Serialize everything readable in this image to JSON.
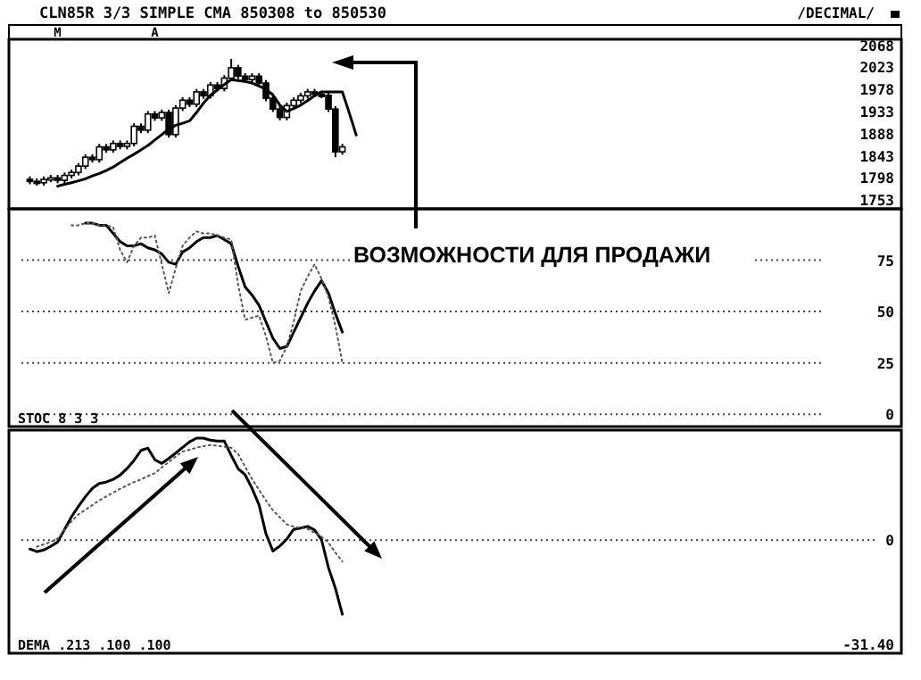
{
  "chart_data": [
    {
      "type": "candlestick",
      "title": "CLN85R 3/3 SIMPLE CMA  850308 to 850530",
      "annotations": [
        "/DECIMAL/"
      ],
      "categories": [
        null,
        null,
        null,
        null,
        null,
        null,
        "M",
        null,
        null,
        null,
        null,
        null,
        null,
        null,
        null,
        null,
        null,
        null,
        null,
        null,
        "A",
        null,
        null,
        null,
        null,
        null,
        null,
        null,
        null,
        null,
        null,
        null,
        null,
        null,
        null,
        null,
        null,
        null,
        null,
        null,
        null,
        null,
        null,
        null,
        null,
        null,
        null,
        null,
        null,
        null,
        null,
        null,
        null,
        null,
        null,
        null,
        null,
        null,
        null,
        null,
        null,
        null,
        null,
        null,
        null,
        null,
        null,
        null,
        null,
        null,
        null,
        null,
        null,
        null,
        null,
        null,
        null,
        null,
        null,
        null,
        null,
        null,
        null,
        null,
        null,
        null,
        null,
        null,
        null,
        null,
        null,
        null,
        null,
        null,
        null,
        null,
        null,
        null,
        null,
        null,
        null,
        null,
        null,
        null,
        null,
        null,
        null,
        null,
        null,
        null,
        null,
        null,
        null,
        null,
        null,
        null,
        null,
        null,
        null,
        null,
        null,
        null,
        null,
        null,
        null,
        null,
        null,
        null
      ],
      "ohlc": [
        null,
        null,
        [
          1795,
          1801,
          1785,
          1791
        ],
        [
          1791,
          1797,
          1782,
          1788
        ],
        [
          1788,
          1801,
          1782,
          1795
        ],
        [
          1795,
          1804,
          1789,
          1798
        ],
        [
          1798,
          1804,
          1787,
          1793
        ],
        [
          1793,
          1809,
          1787,
          1803
        ],
        [
          1803,
          1815,
          1797,
          1809
        ],
        [
          1809,
          1828,
          1803,
          1822
        ],
        [
          1822,
          1846,
          1816,
          1840
        ],
        [
          1840,
          1846,
          1829,
          1835
        ],
        [
          1835,
          1867,
          1829,
          1861
        ],
        [
          1861,
          1867,
          1849,
          1855
        ],
        [
          1855,
          1874,
          1849,
          1868
        ],
        [
          1868,
          1874,
          1856,
          1862
        ],
        [
          1862,
          1874,
          1856,
          1868
        ],
        [
          1868,
          1909,
          1862,
          1903
        ],
        [
          1903,
          1909,
          1889,
          1895
        ],
        [
          1895,
          1934,
          1889,
          1928
        ],
        [
          1928,
          1934,
          1914,
          1920
        ],
        [
          1920,
          1937,
          1914,
          1931
        ],
        [
          1931,
          1937,
          1880,
          1886
        ],
        [
          1886,
          1946,
          1880,
          1940
        ],
        [
          1940,
          1962,
          1934,
          1956
        ],
        [
          1956,
          1962,
          1942,
          1948
        ],
        [
          1948,
          1979,
          1942,
          1973
        ],
        [
          1973,
          1979,
          1959,
          1965
        ],
        [
          1965,
          1993,
          1959,
          1987
        ],
        [
          1987,
          1993,
          1974,
          1980
        ],
        [
          1980,
          2007,
          1974,
          2001
        ],
        [
          2001,
          2040,
          1995,
          2022
        ],
        [
          2022,
          2028,
          1999,
          2005
        ],
        [
          2005,
          2011,
          1992,
          1998
        ],
        [
          1998,
          2011,
          1992,
          2005
        ],
        [
          2005,
          2011,
          1985,
          1991
        ],
        [
          1991,
          1997,
          1954,
          1960
        ],
        [
          1960,
          1966,
          1932,
          1938
        ],
        [
          1938,
          1944,
          1915,
          1921
        ],
        [
          1921,
          1951,
          1915,
          1945
        ],
        [
          1945,
          1962,
          1939,
          1956
        ],
        [
          1956,
          1971,
          1950,
          1965
        ],
        [
          1965,
          1979,
          1959,
          1973
        ],
        [
          1973,
          1979,
          1962,
          1968
        ],
        [
          1968,
          1974,
          1960,
          1966
        ],
        [
          1966,
          1972,
          1932,
          1938
        ],
        [
          1938,
          1944,
          1840,
          1851
        ],
        [
          1851,
          1867,
          1845,
          1861
        ],
        null,
        null,
        null,
        null,
        null,
        null,
        null,
        null,
        null,
        null,
        null,
        null,
        null,
        null,
        null,
        null,
        null,
        null,
        null,
        null,
        null,
        null,
        null,
        null,
        null,
        null,
        null,
        null,
        null,
        null,
        null,
        null,
        null,
        null,
        null,
        null,
        null,
        null,
        null,
        null,
        null,
        null,
        null,
        null,
        null,
        null,
        null,
        null,
        null,
        null,
        null,
        null,
        null,
        null,
        null,
        null,
        null,
        null,
        null,
        null,
        null,
        null,
        null,
        null,
        null,
        null,
        null,
        null,
        null,
        null,
        null,
        null,
        null,
        null,
        null,
        null,
        null,
        null,
        null,
        null
      ],
      "series": [
        {
          "type": "line",
          "color": "#000000",
          "values": [
            null,
            null,
            null,
            null,
            null,
            null,
            1781,
            1785,
            1788,
            1792,
            1796,
            1802,
            1807,
            1813,
            1820,
            1829,
            1838,
            1846,
            1855,
            1864,
            1875,
            1886,
            1897,
            1905,
            1909,
            1914,
            1931,
            1950,
            1966,
            1977,
            1988,
            1998,
            1996,
            1994,
            1991,
            1985,
            1978,
            1967,
            1946,
            1933,
            1939,
            1946,
            1955,
            1965,
            1973,
            1973,
            1973,
            1973,
            1930,
            1885,
            null,
            null,
            null,
            null,
            null,
            null,
            null,
            null,
            null,
            null,
            null,
            null,
            null,
            null,
            null,
            null,
            null,
            null,
            null,
            null,
            null,
            null,
            null,
            null,
            null,
            null,
            null,
            null,
            null,
            null,
            null,
            null,
            null,
            null,
            null,
            null,
            null,
            null,
            null,
            null,
            null,
            null,
            null,
            null,
            null,
            null,
            null,
            null,
            null,
            null,
            null,
            null,
            null,
            null,
            null,
            null,
            null,
            null,
            null,
            null,
            null,
            null,
            null,
            null,
            null,
            null,
            null,
            null,
            null,
            null,
            null,
            null,
            null,
            null,
            null,
            null,
            null,
            null
          ]
        }
      ],
      "ylim": [
        1735,
        2080
      ],
      "yticks": [
        1753,
        1798,
        1843,
        1888,
        1933,
        1978,
        2023,
        2068
      ]
    },
    {
      "type": "line",
      "annotations": [
        "STOC 8 3 3",
        "ВОЗМОЖНОСТИ ДЛЯ ПРОДАЖИ"
      ],
      "categories": [
        null,
        null,
        null,
        null,
        null,
        null,
        null,
        null,
        null,
        null,
        null,
        null,
        null,
        null,
        null,
        null,
        null,
        null,
        null,
        null,
        null,
        null,
        null,
        null,
        null,
        null,
        null,
        null,
        null,
        null,
        null,
        null,
        null,
        null,
        null,
        null,
        null,
        null,
        null,
        null,
        null,
        null,
        null,
        null,
        null,
        null,
        null,
        null,
        null,
        null,
        null,
        null,
        null,
        null,
        null,
        null,
        null,
        null,
        null,
        null,
        null,
        null,
        null,
        null,
        null,
        null,
        null,
        null,
        null,
        null,
        null,
        null,
        null,
        null,
        null,
        null,
        null,
        null,
        null,
        null,
        null,
        null,
        null,
        null,
        null,
        null,
        null,
        null,
        null,
        null,
        null,
        null,
        null,
        null,
        null,
        null,
        null,
        null,
        null,
        null,
        null,
        null,
        null,
        null,
        null,
        null,
        null,
        null,
        null,
        null,
        null,
        null,
        null,
        null,
        null,
        null,
        null,
        null,
        null,
        null,
        null,
        null,
        null,
        null,
        null,
        null,
        null,
        null
      ],
      "series": [
        {
          "color": "#000000",
          "line_style": "solid",
          "values": [
            null,
            null,
            null,
            null,
            null,
            null,
            null,
            null,
            null,
            null,
            93,
            93,
            92,
            92,
            88,
            84,
            82,
            82,
            83,
            81,
            80,
            78,
            74,
            73,
            79,
            81,
            84,
            86,
            86,
            87,
            85,
            83,
            72,
            62,
            58,
            53,
            45,
            37,
            32,
            33,
            40,
            47,
            54,
            60,
            65,
            59,
            49,
            40,
            null,
            null,
            null,
            null,
            null,
            null,
            null,
            null,
            null,
            null,
            null,
            null,
            null,
            null,
            null,
            null,
            null,
            null,
            null,
            null,
            null,
            null,
            null,
            null,
            null,
            null,
            null,
            null,
            null,
            null,
            null,
            null,
            null,
            null,
            null,
            null,
            null,
            null,
            null,
            null,
            null,
            null,
            null,
            null,
            null,
            null,
            null,
            null,
            null,
            null,
            null,
            null,
            null,
            null,
            null,
            null,
            null,
            null,
            null,
            null,
            null,
            null,
            null,
            null,
            null,
            null,
            null,
            null,
            null,
            null,
            null,
            null,
            null,
            null,
            null,
            null,
            null,
            null,
            null,
            null
          ]
        },
        {
          "color": "#555555",
          "line_style": "dotted",
          "values": [
            null,
            null,
            null,
            null,
            null,
            null,
            null,
            null,
            92,
            92,
            93,
            93,
            92,
            92,
            91,
            80,
            74,
            82,
            86,
            86,
            87,
            73,
            59,
            71,
            82,
            86,
            89,
            88,
            88,
            87,
            86,
            85,
            63,
            46,
            47,
            48,
            38,
            25,
            26,
            33,
            45,
            60,
            67,
            73,
            66,
            57,
            43,
            25,
            null,
            null,
            null,
            null,
            null,
            null,
            null,
            null,
            null,
            null,
            null,
            null,
            null,
            null,
            null,
            null,
            null,
            null,
            null,
            null,
            null,
            null,
            null,
            null,
            null,
            null,
            null,
            null,
            null,
            null,
            null,
            null,
            null,
            null,
            null,
            null,
            null,
            null,
            null,
            null,
            null,
            null,
            null,
            null,
            null,
            null,
            null,
            null,
            null,
            null,
            null,
            null,
            null,
            null,
            null,
            null,
            null,
            null,
            null,
            null,
            null,
            null,
            null,
            null,
            null,
            null,
            null,
            null,
            null,
            null,
            null,
            null,
            null,
            null,
            null,
            null,
            null,
            null,
            null,
            null
          ]
        }
      ],
      "ylim": [
        -6,
        100
      ],
      "yticks": [
        0,
        25,
        50,
        75
      ],
      "grid": "y"
    },
    {
      "type": "line",
      "annotations": [
        "DEMA .213 .100 .100"
      ],
      "categories": [
        null,
        null,
        null,
        null,
        null,
        null,
        null,
        null,
        null,
        null,
        null,
        null,
        null,
        null,
        null,
        null,
        null,
        null,
        null,
        null,
        null,
        null,
        null,
        null,
        null,
        null,
        null,
        null,
        null,
        null,
        null,
        null,
        null,
        null,
        null,
        null,
        null,
        null,
        null,
        null,
        null,
        null,
        null,
        null,
        null,
        null,
        null,
        null,
        null,
        null,
        null,
        null,
        null,
        null,
        null,
        null,
        null,
        null,
        null,
        null,
        null,
        null,
        null,
        null,
        null,
        null,
        null,
        null,
        null,
        null,
        null,
        null,
        null,
        null,
        null,
        null,
        null,
        null,
        null,
        null,
        null,
        null,
        null,
        null,
        null,
        null,
        null,
        null,
        null,
        null,
        null,
        null,
        null,
        null,
        null,
        null,
        null,
        null,
        null,
        null,
        null,
        null,
        null,
        null,
        null,
        null,
        null,
        null,
        null,
        null,
        null,
        null,
        null,
        null,
        null,
        null,
        null,
        null,
        null,
        null,
        null,
        null,
        null,
        null,
        null,
        null,
        null,
        null
      ],
      "series": [
        {
          "color": "#000000",
          "line_style": "solid",
          "values": [
            null,
            null,
            -2.7,
            -3.5,
            -3,
            -1.9,
            -0.6,
            3.2,
            7,
            10.1,
            13,
            15.5,
            17,
            17.4,
            18.2,
            19.5,
            21.5,
            23.9,
            26.9,
            27.6,
            24.1,
            23,
            24.5,
            26.1,
            27.8,
            29.5,
            30.6,
            30.6,
            30,
            29.7,
            29.7,
            25.4,
            21.4,
            19.6,
            15.5,
            10.6,
            1.9,
            -3.3,
            -1.8,
            0.3,
            3.2,
            3.6,
            4.1,
            3,
            0.1,
            -8.3,
            -14.5,
            -22.3,
            null,
            null,
            null,
            null,
            null,
            null,
            null,
            null,
            null,
            null,
            null,
            null,
            null,
            null,
            null,
            null,
            null,
            null,
            null,
            null,
            null,
            null,
            null,
            null,
            null,
            null,
            null,
            null,
            null,
            null,
            null,
            null,
            null,
            null,
            null,
            null,
            null,
            null,
            null,
            null,
            null,
            null,
            null,
            null,
            null,
            null,
            null,
            null,
            null,
            null,
            null,
            null,
            null,
            null,
            null,
            null,
            null,
            null,
            null,
            null,
            null,
            null,
            null,
            null,
            null,
            null,
            null,
            null,
            null,
            null,
            null,
            null,
            null,
            null,
            null,
            null,
            null,
            null,
            null,
            null
          ]
        },
        {
          "color": "#555555",
          "line_style": "dotted",
          "values": [
            null,
            null,
            null,
            -2,
            -1.3,
            -0.6,
            0.4,
            3.1,
            5.6,
            7.7,
            9.1,
            10.5,
            11.9,
            13.1,
            14.2,
            15.4,
            16.4,
            17.4,
            18.2,
            19.2,
            20.1,
            21.8,
            23.4,
            25.1,
            26.6,
            27.1,
            27.7,
            28.2,
            28.5,
            28.3,
            28,
            27.7,
            25.8,
            22,
            18.3,
            15.1,
            11.9,
            8.9,
            6.8,
            4.7,
            4,
            3.6,
            3.3,
            2.2,
            1,
            -0.8,
            -3.8,
            -6.4,
            null,
            null,
            null,
            null,
            null,
            null,
            null,
            null,
            null,
            null,
            null,
            null,
            null,
            null,
            null,
            null,
            null,
            null,
            null,
            null,
            null,
            null,
            null,
            null,
            null,
            null,
            null,
            null,
            null,
            null,
            null,
            null,
            null,
            null,
            null,
            null,
            null,
            null,
            null,
            null,
            null,
            null,
            null,
            null,
            null,
            null,
            null,
            null,
            null,
            null,
            null,
            null,
            null,
            null,
            null,
            null,
            null,
            null,
            null,
            null,
            null,
            null,
            null,
            null,
            null,
            null,
            null,
            null,
            null,
            null,
            null,
            null,
            null,
            null,
            null,
            null,
            null,
            null,
            null,
            null
          ]
        }
      ],
      "ylim": [
        -34,
        33
      ],
      "yticks": [
        {
          "value": -31.4,
          "label": "-31.40"
        },
        0
      ],
      "ref_lines": [
        {
          "axis": "y",
          "value": 0,
          "line_style": "dotted"
        }
      ]
    }
  ]
}
